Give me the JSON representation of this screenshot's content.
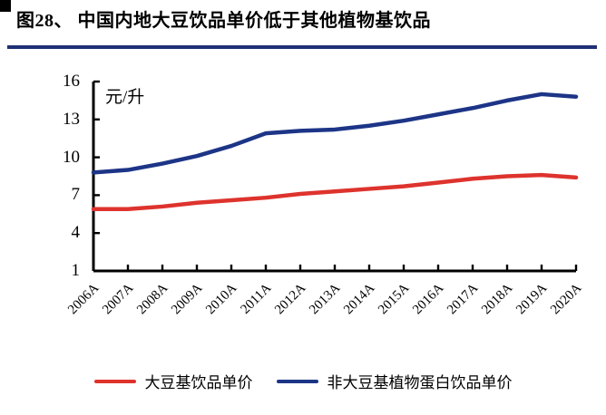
{
  "header": {
    "title": "图28、 中国内地大豆饮品单价低于其他植物基饮品",
    "rule_color": "#1f3175"
  },
  "chart_data": {
    "type": "line",
    "unit_label": "元/升",
    "categories": [
      "2006A",
      "2007A",
      "2008A",
      "2009A",
      "2010A",
      "2011A",
      "2012A",
      "2013A",
      "2014A",
      "2015A",
      "2016A",
      "2017A",
      "2018A",
      "2019A",
      "2020A"
    ],
    "y_ticks": [
      16,
      13,
      10,
      7,
      4,
      1
    ],
    "ylim": [
      1,
      16
    ],
    "grid": false,
    "legend_position": "bottom",
    "axis_color": "#000000",
    "series": [
      {
        "name": "大豆基饮品单价",
        "color": "#de332d",
        "values": [
          5.9,
          5.9,
          6.1,
          6.4,
          6.6,
          6.8,
          7.1,
          7.3,
          7.5,
          7.7,
          8.0,
          8.3,
          8.5,
          8.6,
          8.4
        ]
      },
      {
        "name": "非大豆基植物蛋白饮品单价",
        "color": "#1d3587",
        "values": [
          8.8,
          9.0,
          9.5,
          10.1,
          10.9,
          11.9,
          12.1,
          12.2,
          12.5,
          12.9,
          13.4,
          13.9,
          14.5,
          15.0,
          14.8
        ]
      }
    ]
  }
}
